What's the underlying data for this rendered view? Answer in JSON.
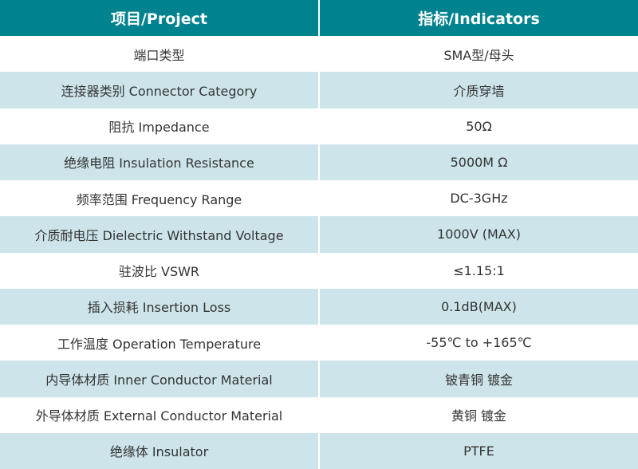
{
  "header": {
    "project": "项目/Project",
    "indicators": "指标/Indicators"
  },
  "colors": {
    "header_bg": "#00838f",
    "alt_row_bg": "#cde5ea"
  },
  "rows": [
    {
      "project": "端口类型",
      "value": "SMA型/母头"
    },
    {
      "project": "连接器类别 Connector Category",
      "value": "介质穿墙"
    },
    {
      "project": "阻抗 Impedance",
      "value": "50Ω"
    },
    {
      "project": "绝缘电阻 Insulation Resistance",
      "value": "5000M Ω"
    },
    {
      "project": "频率范围 Frequency Range",
      "value": "DC-3GHz"
    },
    {
      "project": "介质耐电压 Dielectric Withstand Voltage",
      "value": "1000V (MAX)"
    },
    {
      "project": "驻波比 VSWR",
      "value": "≤1.15:1"
    },
    {
      "project": "插入损耗 Insertion Loss",
      "value": "0.1dB(MAX)"
    },
    {
      "project": "工作温度 Operation Temperature",
      "value": "-55℃  to +165℃"
    },
    {
      "project": "内导体材质 Inner Conductor Material",
      "value": "铍青铜 镀金"
    },
    {
      "project": "外导体材质 External Conductor Material",
      "value": "黄铜 镀金"
    },
    {
      "project": "绝缘体 Insulator",
      "value": "PTFE"
    }
  ]
}
